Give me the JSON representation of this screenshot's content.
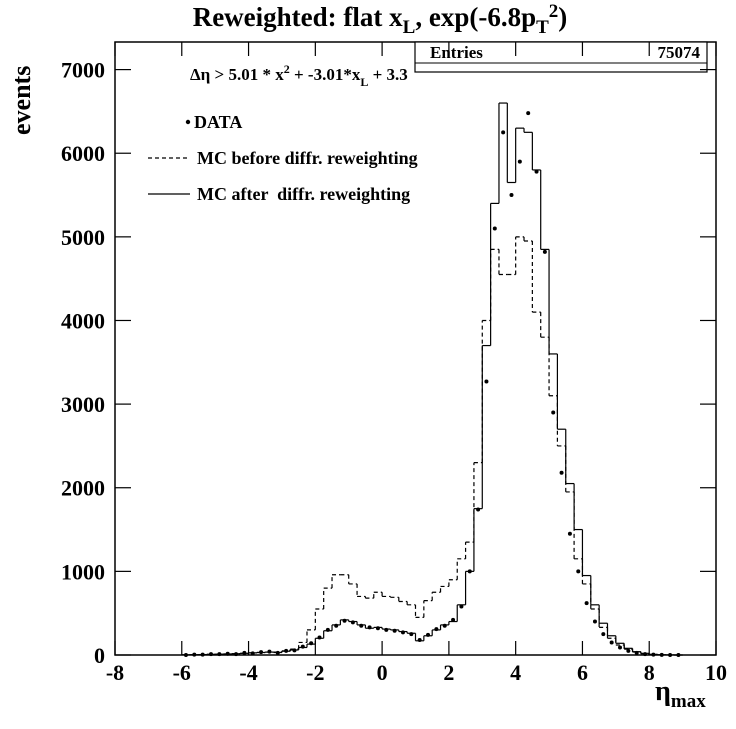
{
  "chart_data": {
    "type": "histogram",
    "title": [
      "Reweighted: flat x",
      "L",
      ", exp(-6.8p",
      "T",
      "2",
      ")"
    ],
    "annotation": [
      "Δη > 5.01 * x",
      "2",
      " + -3.01*x",
      "L",
      " + 3.3"
    ],
    "stats": {
      "label": "Entries",
      "value": 75074
    },
    "ylabel": "events",
    "xlabel": [
      "η",
      "max"
    ],
    "xlim": [
      -8,
      10
    ],
    "ylim": [
      0,
      7330
    ],
    "xticks": [
      -8,
      -6,
      -4,
      -2,
      0,
      2,
      4,
      6,
      8,
      10
    ],
    "yticks": [
      0,
      1000,
      2000,
      3000,
      4000,
      5000,
      6000,
      7000
    ],
    "bins": [
      -6,
      -5.75,
      -5.5,
      -5.25,
      -5,
      -4.75,
      -4.5,
      -4.25,
      -4,
      -3.75,
      -3.5,
      -3.25,
      -3,
      -2.75,
      -2.5,
      -2.25,
      -2,
      -1.75,
      -1.5,
      -1.25,
      -1,
      -0.75,
      -0.5,
      -0.25,
      0,
      0.25,
      0.5,
      0.75,
      1,
      1.25,
      1.5,
      1.75,
      2,
      2.25,
      2.5,
      2.75,
      3,
      3.25,
      3.5,
      3.75,
      4,
      4.25,
      4.5,
      4.75,
      5,
      5.25,
      5.5,
      5.75,
      6,
      6.25,
      6.5,
      6.75,
      7,
      7.25,
      7.5,
      7.75,
      8,
      8.25,
      8.5,
      8.75,
      9
    ],
    "series": [
      {
        "name": "DATA",
        "style": "points",
        "color": "#000000",
        "values": [
          0,
          5,
          5,
          10,
          10,
          15,
          10,
          25,
          20,
          35,
          40,
          25,
          50,
          55,
          100,
          140,
          210,
          300,
          350,
          410,
          390,
          350,
          330,
          320,
          300,
          290,
          270,
          250,
          180,
          240,
          310,
          350,
          420,
          580,
          1000,
          1740,
          3270,
          5100,
          6250,
          5500,
          5900,
          6480,
          5780,
          4820,
          2900,
          2180,
          1450,
          1000,
          620,
          400,
          250,
          150,
          90,
          50,
          25,
          10,
          5,
          2,
          0,
          0
        ]
      },
      {
        "name": "MC before diffr. reweighting",
        "style": "dashed",
        "color": "#000000",
        "values": [
          2,
          3,
          5,
          8,
          10,
          12,
          15,
          20,
          25,
          30,
          35,
          35,
          50,
          70,
          150,
          300,
          550,
          800,
          960,
          960,
          850,
          700,
          680,
          750,
          700,
          690,
          640,
          600,
          450,
          650,
          750,
          820,
          900,
          1150,
          1350,
          2300,
          4000,
          4850,
          4550,
          4550,
          5000,
          4950,
          4100,
          3800,
          3100,
          2500,
          1950,
          1150,
          850,
          550,
          330,
          200,
          120,
          70,
          35,
          15,
          6,
          2,
          1,
          0
        ]
      },
      {
        "name": "MC after  diffr. reweighting",
        "style": "solid",
        "color": "#000000",
        "values": [
          2,
          3,
          5,
          8,
          10,
          12,
          15,
          20,
          25,
          30,
          35,
          30,
          45,
          60,
          90,
          130,
          200,
          290,
          360,
          420,
          400,
          360,
          320,
          330,
          310,
          300,
          280,
          260,
          170,
          230,
          300,
          360,
          400,
          600,
          1000,
          1750,
          3700,
          5400,
          6600,
          5650,
          6300,
          6250,
          5800,
          4850,
          3600,
          2700,
          2050,
          1500,
          950,
          600,
          380,
          230,
          140,
          80,
          40,
          20,
          8,
          3,
          1,
          0
        ]
      }
    ]
  }
}
